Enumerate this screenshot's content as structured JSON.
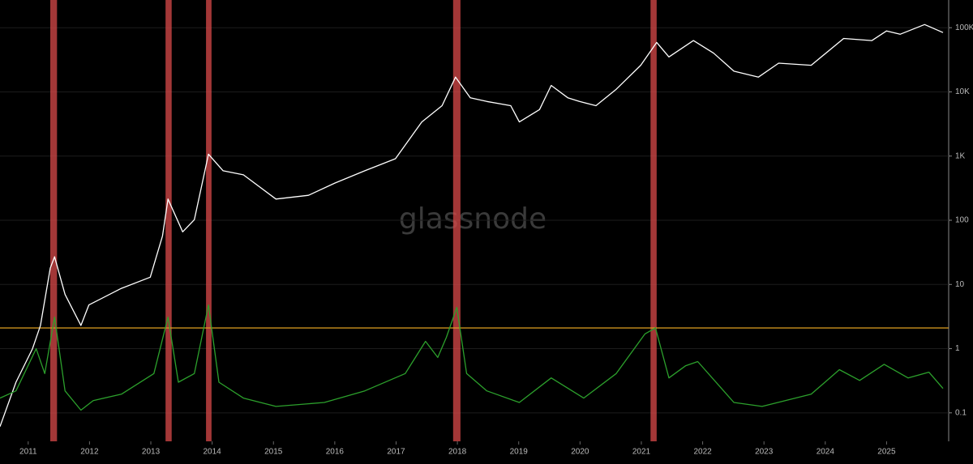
{
  "chart_data": {
    "type": "line",
    "watermark": "glassnode",
    "xlim": [
      2010.54,
      2025.92
    ],
    "xticks": [
      2011,
      2012,
      2013,
      2014,
      2015,
      2016,
      2017,
      2018,
      2019,
      2020,
      2021,
      2022,
      2023,
      2024,
      2025
    ],
    "ylim": [
      0.036,
      270000
    ],
    "log_scale": true,
    "grid": true,
    "yticks": [
      {
        "value": 100000,
        "label": "100K"
      },
      {
        "value": 10000,
        "label": "10K"
      },
      {
        "value": 1000,
        "label": "1K"
      },
      100,
      10,
      1,
      0.1
    ],
    "threshold": {
      "value": 2.1,
      "color": "#e0a020"
    },
    "highlight_color": "#d94a4a",
    "highlights": [
      [
        2011.36,
        2011.47
      ],
      [
        2013.24,
        2013.34
      ],
      [
        2013.9,
        2013.99
      ],
      [
        2017.93,
        2018.05
      ],
      [
        2021.15,
        2021.25
      ]
    ],
    "series": [
      {
        "color": "#ffffff",
        "x": [
          2010.54,
          2010.8,
          2011.07,
          2011.2,
          2011.36,
          2011.43,
          2011.6,
          2011.86,
          2011.99,
          2012.52,
          2012.99,
          2013.19,
          2013.28,
          2013.52,
          2013.71,
          2013.94,
          2014.18,
          2014.51,
          2015.04,
          2015.57,
          2016.0,
          2016.49,
          2016.99,
          2017.42,
          2017.75,
          2017.97,
          2018.21,
          2018.48,
          2018.87,
          2019.01,
          2019.34,
          2019.53,
          2019.8,
          2019.99,
          2020.26,
          2020.59,
          2020.99,
          2021.25,
          2021.45,
          2021.85,
          2022.18,
          2022.51,
          2022.91,
          2023.24,
          2023.77,
          2024.3,
          2024.76,
          2025.0,
          2025.22,
          2025.62,
          2025.92
        ],
        "values": [
          0.061,
          0.3,
          1,
          2.3,
          18,
          27,
          7,
          2.3,
          4.8,
          8.7,
          13,
          57,
          214,
          66,
          102,
          1070,
          590,
          510,
          214,
          245,
          380,
          590,
          910,
          3400,
          6100,
          17000,
          8100,
          7100,
          6100,
          3400,
          5300,
          12600,
          8100,
          7100,
          6100,
          11000,
          26000,
          59000,
          35000,
          63000,
          40000,
          21000,
          17000,
          28000,
          26000,
          68000,
          63000,
          89000,
          79000,
          112000,
          84000
        ]
      },
      {
        "color": "#2ca02c",
        "x": [
          2010.54,
          2010.8,
          2011.13,
          2011.27,
          2011.43,
          2011.6,
          2011.86,
          2012.06,
          2012.52,
          2013.05,
          2013.28,
          2013.45,
          2013.71,
          2013.94,
          2014.11,
          2014.51,
          2015.04,
          2015.83,
          2016.49,
          2017.15,
          2017.48,
          2017.68,
          2017.82,
          2017.99,
          2018.15,
          2018.48,
          2019.01,
          2019.53,
          2020.06,
          2020.59,
          2021.06,
          2021.23,
          2021.45,
          2021.72,
          2021.92,
          2022.51,
          2022.97,
          2023.77,
          2024.23,
          2024.56,
          2024.96,
          2025.35,
          2025.69,
          2025.92
        ],
        "values": [
          0.17,
          0.22,
          1,
          0.41,
          3.1,
          0.22,
          0.11,
          0.155,
          0.195,
          0.41,
          3.1,
          0.3,
          0.41,
          4.8,
          0.3,
          0.17,
          0.126,
          0.145,
          0.22,
          0.41,
          1.3,
          0.73,
          1.5,
          4.4,
          0.41,
          0.22,
          0.145,
          0.35,
          0.17,
          0.41,
          1.7,
          2.1,
          0.35,
          0.54,
          0.63,
          0.145,
          0.126,
          0.195,
          0.47,
          0.32,
          0.57,
          0.35,
          0.43,
          0.24
        ]
      }
    ]
  }
}
